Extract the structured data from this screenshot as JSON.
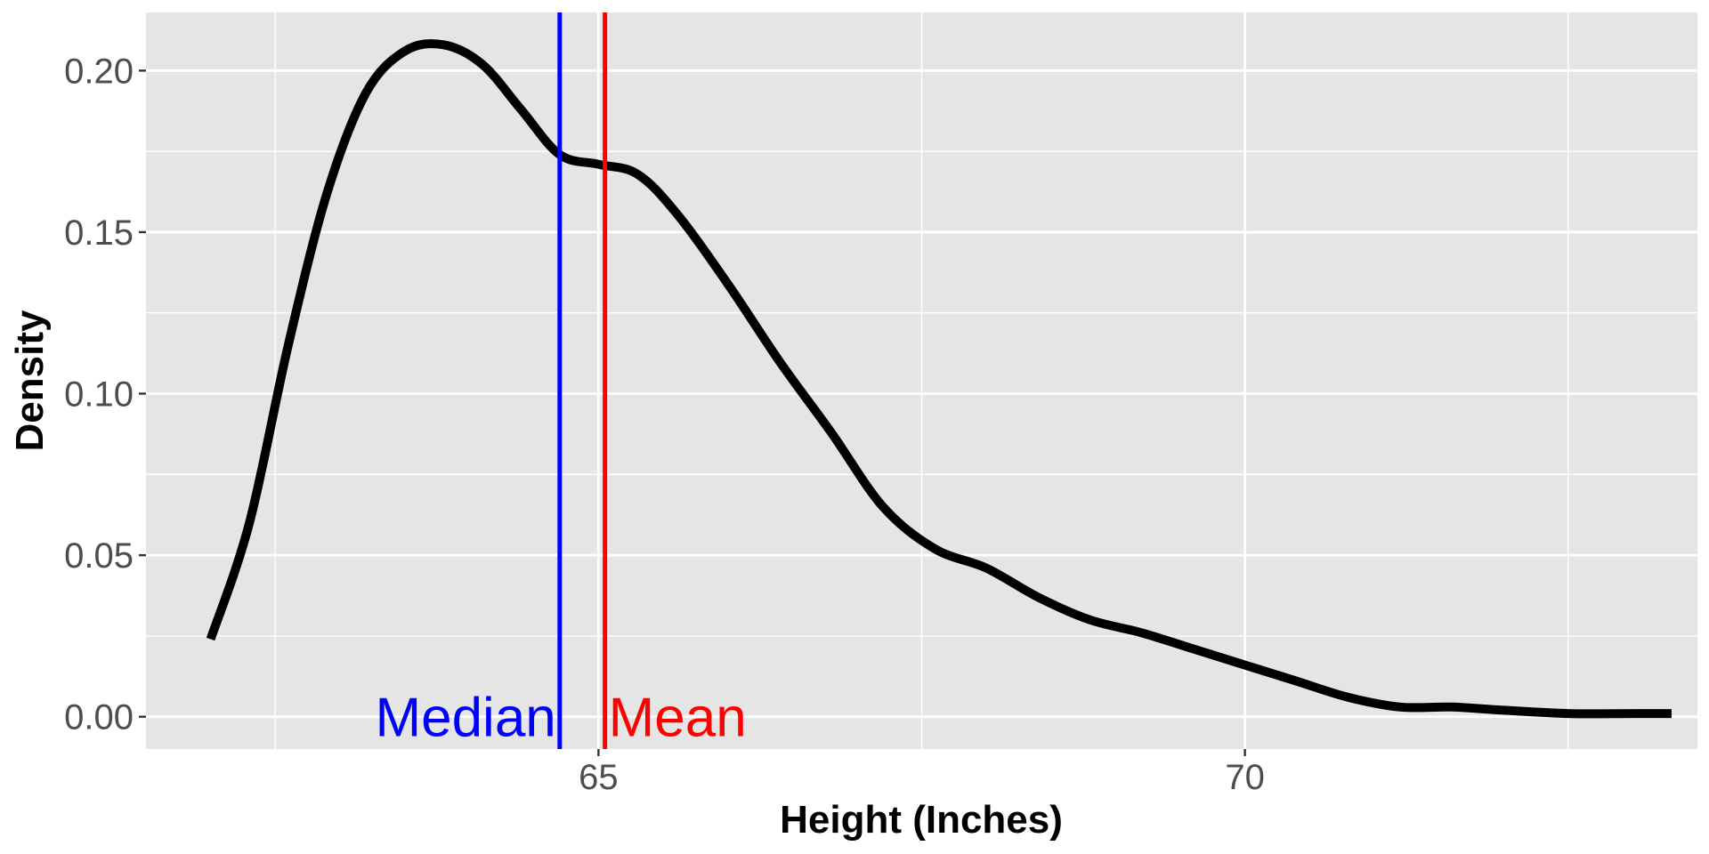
{
  "chart_data": {
    "type": "line",
    "title": "",
    "xlabel": "Height (Inches)",
    "ylabel": "Density",
    "xlim": [
      61.5,
      73.5
    ],
    "ylim": [
      -0.01,
      0.218
    ],
    "x_ticks": [
      65,
      70
    ],
    "x_minor_ticks": [
      62.5,
      67.5,
      72.5
    ],
    "y_ticks": [
      0.0,
      0.05,
      0.1,
      0.15,
      0.2
    ],
    "y_tick_labels": [
      "0.00",
      "0.05",
      "0.10",
      "0.15",
      "0.20"
    ],
    "y_minor_ticks": [
      0.025,
      0.075,
      0.125,
      0.175
    ],
    "grid": true,
    "series": [
      {
        "color": "#000000",
        "points": [
          [
            62.0,
            0.024
          ],
          [
            62.3,
            0.06
          ],
          [
            62.6,
            0.115
          ],
          [
            62.9,
            0.162
          ],
          [
            63.2,
            0.193
          ],
          [
            63.5,
            0.206
          ],
          [
            63.8,
            0.208
          ],
          [
            64.1,
            0.202
          ],
          [
            64.4,
            0.188
          ],
          [
            64.7,
            0.174
          ],
          [
            65.0,
            0.171
          ],
          [
            65.3,
            0.168
          ],
          [
            65.6,
            0.156
          ],
          [
            66.0,
            0.134
          ],
          [
            66.4,
            0.11
          ],
          [
            66.8,
            0.088
          ],
          [
            67.2,
            0.065
          ],
          [
            67.6,
            0.052
          ],
          [
            68.0,
            0.046
          ],
          [
            68.4,
            0.037
          ],
          [
            68.8,
            0.03
          ],
          [
            69.2,
            0.026
          ],
          [
            69.6,
            0.021
          ],
          [
            70.0,
            0.016
          ],
          [
            70.4,
            0.011
          ],
          [
            70.8,
            0.006
          ],
          [
            71.2,
            0.003
          ],
          [
            71.6,
            0.003
          ],
          [
            72.0,
            0.002
          ],
          [
            72.5,
            0.001
          ],
          [
            73.0,
            0.001
          ],
          [
            73.3,
            0.001
          ]
        ]
      }
    ],
    "reference_lines": [
      {
        "label": "Median",
        "x": 64.7,
        "color": "#0000ff"
      },
      {
        "label": "Mean",
        "x": 65.05,
        "color": "#ff0000"
      }
    ]
  }
}
